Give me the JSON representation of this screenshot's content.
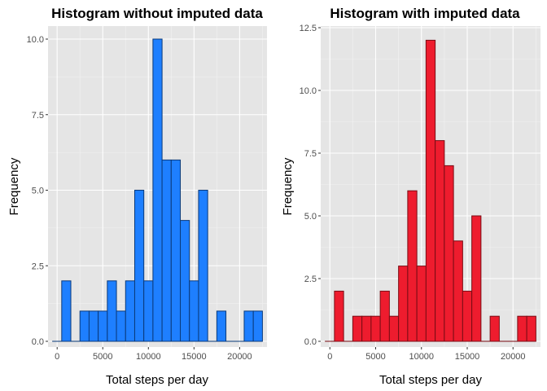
{
  "chart_data": [
    {
      "type": "bar",
      "title": "Histogram without imputed data",
      "xlabel": "Total steps per day",
      "ylabel": "Frequency",
      "bin_width": 1000,
      "bin_centers": [
        0,
        1000,
        2000,
        3000,
        4000,
        5000,
        6000,
        7000,
        8000,
        9000,
        10000,
        11000,
        12000,
        13000,
        14000,
        15000,
        16000,
        17000,
        18000,
        19000,
        20000,
        21000,
        22000
      ],
      "values": [
        0,
        2,
        0,
        1,
        1,
        1,
        2,
        1,
        2,
        5,
        2,
        10,
        6,
        6,
        4,
        2,
        5,
        0,
        1,
        0,
        0,
        1,
        1
      ],
      "xlim": [
        -1000,
        23000
      ],
      "ylim": [
        0,
        10
      ],
      "x_ticks": [
        0,
        5000,
        10000,
        15000,
        20000
      ],
      "x_tick_labels": [
        "0",
        "5000",
        "10000",
        "15000",
        "20000"
      ],
      "y_ticks": [
        0,
        2.5,
        5,
        7.5,
        10
      ],
      "y_tick_labels": [
        "0.0",
        "2.5",
        "5.0",
        "7.5",
        "10.0"
      ],
      "fill_color": "#1e7fff",
      "edge_color": "#0a3a7a",
      "panel_color": "#e5e5e5",
      "grid": true
    },
    {
      "type": "bar",
      "title": "Histogram with imputed data",
      "xlabel": "Total steps per day",
      "ylabel": "Frequency",
      "bin_width": 1000,
      "bin_centers": [
        0,
        1000,
        2000,
        3000,
        4000,
        5000,
        6000,
        7000,
        8000,
        9000,
        10000,
        11000,
        12000,
        13000,
        14000,
        15000,
        16000,
        17000,
        18000,
        19000,
        20000,
        21000,
        22000
      ],
      "values": [
        0,
        2,
        0,
        1,
        1,
        1,
        2,
        1,
        3,
        6,
        3,
        12,
        8,
        7,
        4,
        2,
        5,
        0,
        1,
        0,
        0,
        1,
        1
      ],
      "xlim": [
        -1000,
        23000
      ],
      "ylim": [
        0,
        12.5
      ],
      "x_ticks": [
        0,
        5000,
        10000,
        15000,
        20000
      ],
      "x_tick_labels": [
        "0",
        "5000",
        "10000",
        "15000",
        "20000"
      ],
      "y_ticks": [
        0,
        2.5,
        5,
        7.5,
        10,
        12.5
      ],
      "y_tick_labels": [
        "0.0",
        "2.5",
        "5.0",
        "7.5",
        "10.0",
        "12.5"
      ],
      "fill_color": "#ee1c2e",
      "edge_color": "#7a0c14",
      "panel_color": "#e5e5e5",
      "grid": true
    }
  ]
}
